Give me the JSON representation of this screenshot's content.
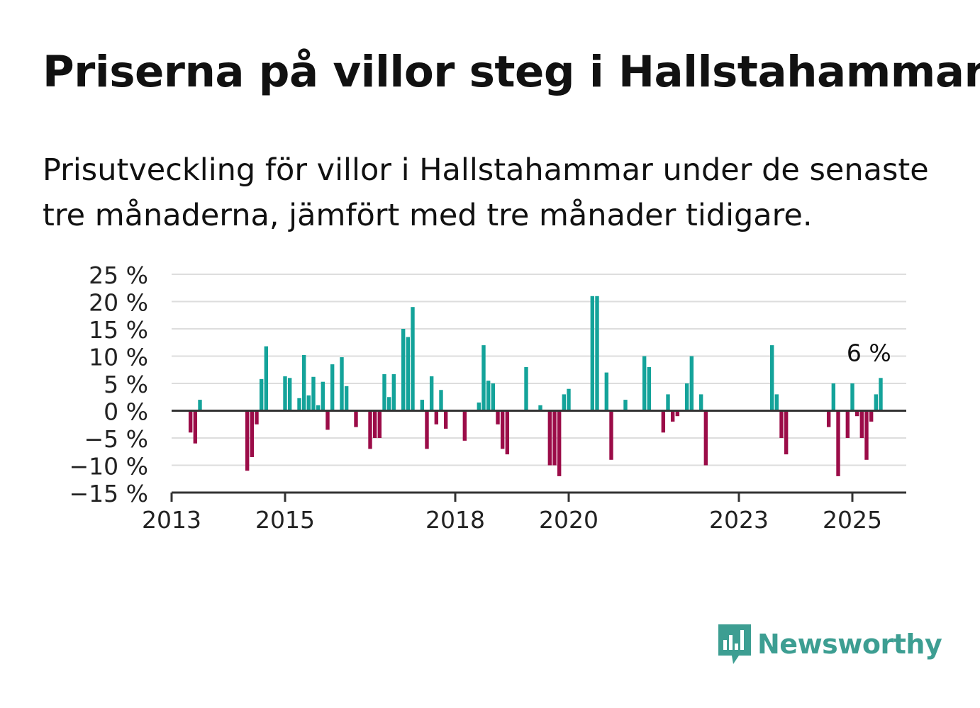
{
  "title": "Priserna på villor steg i Hallstahammar",
  "subtitle": "Prisutveckling för villor i Hallstahammar under de senaste tre månaderna, jämfört med tre månader tidigare.",
  "brand": {
    "name": "Newsworthy",
    "color": "#3d9e92"
  },
  "colors": {
    "positive": "#14a39a",
    "negative": "#9b0c48",
    "grid": "#dddddd",
    "axis": "#333333",
    "text": "#222222"
  },
  "chart_data": {
    "type": "bar",
    "x_unit": "month",
    "x_range": [
      "2013-01",
      "2025-12"
    ],
    "ylim": [
      -15,
      25
    ],
    "y_ticks": [
      25,
      20,
      15,
      10,
      5,
      0,
      -5,
      -10,
      -15
    ],
    "y_tick_labels": [
      "25 %",
      "20 %",
      "15 %",
      "10 %",
      "5 %",
      "0 %",
      "−5 %",
      "−10 %",
      "−15 %"
    ],
    "x_ticks": [
      "2013-01",
      "2015-01",
      "2018-01",
      "2020-01",
      "2023-01",
      "2025-01"
    ],
    "x_tick_labels": [
      "2013",
      "2015",
      "2018",
      "2020",
      "2023",
      "2025"
    ],
    "grid": true,
    "annotation": {
      "x": "2025-03",
      "text": "6 %"
    },
    "series": [
      {
        "values": [
          {
            "x": "2013-05",
            "y": -4
          },
          {
            "x": "2013-06",
            "y": -6
          },
          {
            "x": "2013-07",
            "y": 2
          },
          {
            "x": "2014-05",
            "y": -11
          },
          {
            "x": "2014-06",
            "y": -8.5
          },
          {
            "x": "2014-07",
            "y": -2.5
          },
          {
            "x": "2014-08",
            "y": 5.8
          },
          {
            "x": "2014-09",
            "y": 11.8
          },
          {
            "x": "2015-01",
            "y": 6.3
          },
          {
            "x": "2015-02",
            "y": 6
          },
          {
            "x": "2015-04",
            "y": 2.3
          },
          {
            "x": "2015-05",
            "y": 10.2
          },
          {
            "x": "2015-06",
            "y": 2.8
          },
          {
            "x": "2015-07",
            "y": 6.2
          },
          {
            "x": "2015-08",
            "y": 1
          },
          {
            "x": "2015-09",
            "y": 5.3
          },
          {
            "x": "2015-10",
            "y": -3.5
          },
          {
            "x": "2015-11",
            "y": 8.5
          },
          {
            "x": "2016-01",
            "y": 9.8
          },
          {
            "x": "2016-02",
            "y": 4.5
          },
          {
            "x": "2016-04",
            "y": -3
          },
          {
            "x": "2016-07",
            "y": -7
          },
          {
            "x": "2016-08",
            "y": -5
          },
          {
            "x": "2016-09",
            "y": -5
          },
          {
            "x": "2016-10",
            "y": 6.7
          },
          {
            "x": "2016-11",
            "y": 2.5
          },
          {
            "x": "2016-12",
            "y": 6.7
          },
          {
            "x": "2017-02",
            "y": 15
          },
          {
            "x": "2017-03",
            "y": 13.5
          },
          {
            "x": "2017-04",
            "y": 19
          },
          {
            "x": "2017-06",
            "y": 2
          },
          {
            "x": "2017-07",
            "y": -7
          },
          {
            "x": "2017-08",
            "y": 6.3
          },
          {
            "x": "2017-09",
            "y": -2.5
          },
          {
            "x": "2017-10",
            "y": 3.8
          },
          {
            "x": "2017-11",
            "y": -3.3
          },
          {
            "x": "2018-03",
            "y": -5.5
          },
          {
            "x": "2018-06",
            "y": 1.5
          },
          {
            "x": "2018-07",
            "y": 12
          },
          {
            "x": "2018-08",
            "y": 5.5
          },
          {
            "x": "2018-09",
            "y": 5
          },
          {
            "x": "2018-10",
            "y": -2.5
          },
          {
            "x": "2018-11",
            "y": -7
          },
          {
            "x": "2018-12",
            "y": -8
          },
          {
            "x": "2019-04",
            "y": 8
          },
          {
            "x": "2019-07",
            "y": 1
          },
          {
            "x": "2019-09",
            "y": -10
          },
          {
            "x": "2019-10",
            "y": -10
          },
          {
            "x": "2019-11",
            "y": -12
          },
          {
            "x": "2019-12",
            "y": 3
          },
          {
            "x": "2020-01",
            "y": 4
          },
          {
            "x": "2020-06",
            "y": 21
          },
          {
            "x": "2020-07",
            "y": 21
          },
          {
            "x": "2020-09",
            "y": 7
          },
          {
            "x": "2020-10",
            "y": -9
          },
          {
            "x": "2021-01",
            "y": 2
          },
          {
            "x": "2021-05",
            "y": 10
          },
          {
            "x": "2021-06",
            "y": 8
          },
          {
            "x": "2021-09",
            "y": -4
          },
          {
            "x": "2021-10",
            "y": 3
          },
          {
            "x": "2021-11",
            "y": -2
          },
          {
            "x": "2021-12",
            "y": -1
          },
          {
            "x": "2022-02",
            "y": 5
          },
          {
            "x": "2022-03",
            "y": 10
          },
          {
            "x": "2022-05",
            "y": 3
          },
          {
            "x": "2022-06",
            "y": -10
          },
          {
            "x": "2023-08",
            "y": 12
          },
          {
            "x": "2023-09",
            "y": 3
          },
          {
            "x": "2023-10",
            "y": -5
          },
          {
            "x": "2023-11",
            "y": -8
          },
          {
            "x": "2024-08",
            "y": -3
          },
          {
            "x": "2024-09",
            "y": 5
          },
          {
            "x": "2024-10",
            "y": -12
          },
          {
            "x": "2024-12",
            "y": -5
          },
          {
            "x": "2025-01",
            "y": 5
          },
          {
            "x": "2025-02",
            "y": -1
          },
          {
            "x": "2025-03",
            "y": -5
          },
          {
            "x": "2025-04",
            "y": -9
          },
          {
            "x": "2025-05",
            "y": -2
          },
          {
            "x": "2025-06",
            "y": 3
          },
          {
            "x": "2025-07",
            "y": 6
          }
        ]
      }
    ]
  }
}
